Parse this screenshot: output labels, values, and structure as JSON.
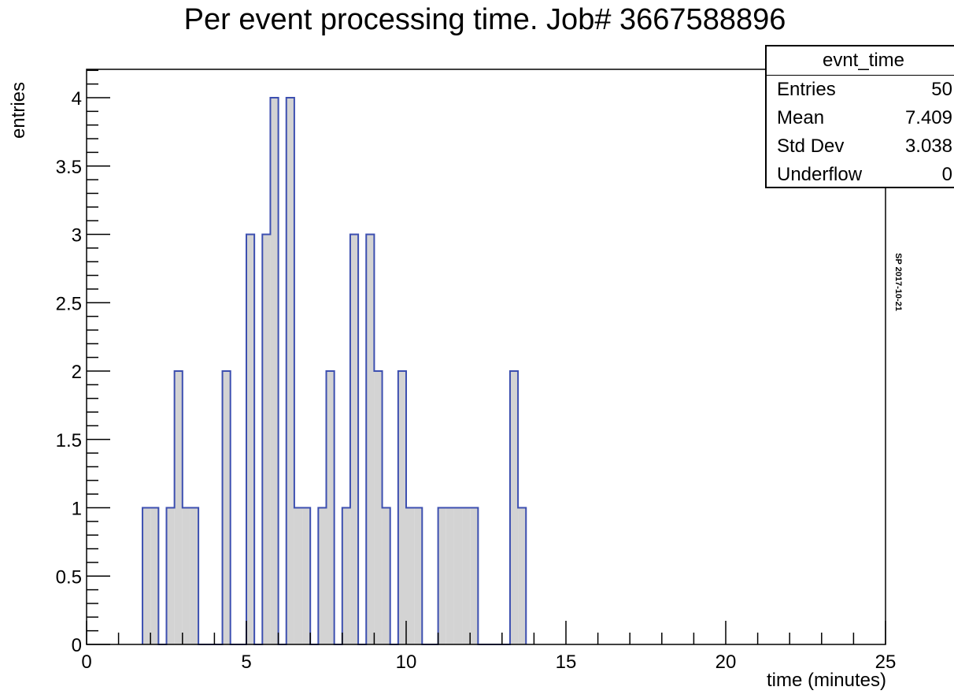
{
  "title": "Per event processing time. Job# 3667588896",
  "stamp": "SP 2017-10-21",
  "stats_box": {
    "name": "evnt_time",
    "rows": [
      {
        "label": "Entries",
        "value": "50"
      },
      {
        "label": "Mean",
        "value": "7.409"
      },
      {
        "label": "Std Dev",
        "value": "3.038"
      },
      {
        "label": "Underflow",
        "value": "0"
      }
    ]
  },
  "chart_data": {
    "type": "bar",
    "xlabel": "time (minutes)",
    "ylabel": "entries",
    "xlim": [
      0,
      25
    ],
    "ylim": [
      0,
      4.2
    ],
    "bin_width": 0.25,
    "x_ticks": [
      "0",
      "5",
      "10",
      "15",
      "20",
      "25"
    ],
    "y_ticks": [
      "0",
      "0.5",
      "1",
      "1.5",
      "2",
      "2.5",
      "3",
      "3.5",
      "4"
    ],
    "fill_color": "#d3d3d3",
    "line_color": "#3c4fb0",
    "bins": [
      {
        "x": 1.75,
        "count": 1
      },
      {
        "x": 2.0,
        "count": 1
      },
      {
        "x": 2.5,
        "count": 1
      },
      {
        "x": 2.75,
        "count": 2
      },
      {
        "x": 3.0,
        "count": 1
      },
      {
        "x": 3.25,
        "count": 1
      },
      {
        "x": 4.25,
        "count": 2
      },
      {
        "x": 5.0,
        "count": 3
      },
      {
        "x": 5.5,
        "count": 3
      },
      {
        "x": 5.75,
        "count": 4
      },
      {
        "x": 6.25,
        "count": 4
      },
      {
        "x": 6.5,
        "count": 1
      },
      {
        "x": 6.75,
        "count": 1
      },
      {
        "x": 7.25,
        "count": 1
      },
      {
        "x": 7.5,
        "count": 2
      },
      {
        "x": 8.0,
        "count": 1
      },
      {
        "x": 8.25,
        "count": 3
      },
      {
        "x": 8.75,
        "count": 3
      },
      {
        "x": 9.0,
        "count": 2
      },
      {
        "x": 9.25,
        "count": 1
      },
      {
        "x": 9.75,
        "count": 2
      },
      {
        "x": 10.0,
        "count": 1
      },
      {
        "x": 10.25,
        "count": 1
      },
      {
        "x": 11.0,
        "count": 1
      },
      {
        "x": 11.25,
        "count": 1
      },
      {
        "x": 11.5,
        "count": 1
      },
      {
        "x": 11.75,
        "count": 1
      },
      {
        "x": 12.0,
        "count": 1
      },
      {
        "x": 13.25,
        "count": 2
      },
      {
        "x": 13.5,
        "count": 1
      }
    ]
  }
}
